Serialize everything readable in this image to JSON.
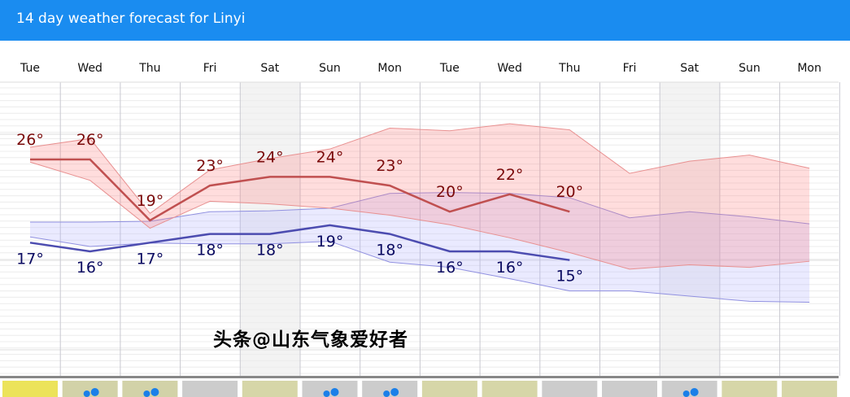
{
  "header": {
    "title": "14 day weather forecast for Linyi"
  },
  "days": [
    "Tue",
    "Wed",
    "Thu",
    "Fri",
    "Sat",
    "Sun",
    "Mon",
    "Tue",
    "Wed",
    "Thu",
    "Fri",
    "Sat",
    "Sun",
    "Mon"
  ],
  "colors": {
    "header": "#1a8cf0",
    "high": "#c05050",
    "low": "#4c4cb0",
    "high_label": "#7a0a0a",
    "low_label": "#0a0a60"
  },
  "high_labels": [
    "26°",
    "26°",
    "19°",
    "23°",
    "24°",
    "24°",
    "23°",
    "20°",
    "22°",
    "20°"
  ],
  "low_labels": [
    "17°",
    "16°",
    "17°",
    "18°",
    "18°",
    "19°",
    "18°",
    "16°",
    "16°",
    "15°"
  ],
  "high_values": [
    26,
    26,
    19,
    23,
    24,
    24,
    23,
    20,
    22,
    20
  ],
  "low_values": [
    17,
    16,
    17,
    18,
    18,
    19,
    18,
    16,
    16,
    15
  ],
  "high_band_upper": [
    27.4,
    28.4,
    19.8,
    24.8,
    26.1,
    27.2,
    29.6,
    29.3,
    30.1,
    29.4,
    24.4,
    25.8,
    26.5,
    25.0
  ],
  "high_band_lower": [
    25.7,
    23.6,
    18.1,
    21.2,
    20.9,
    20.4,
    19.6,
    18.5,
    17.0,
    15.3,
    13.4,
    13.9,
    13.6,
    14.3
  ],
  "low_band_upper": [
    18.8,
    18.8,
    18.9,
    20.0,
    20.1,
    20.4,
    22.1,
    22.2,
    22.1,
    21.6,
    19.3,
    20.0,
    19.4,
    18.6
  ],
  "low_band_lower": [
    17.1,
    16.0,
    16.4,
    16.3,
    16.3,
    16.6,
    14.2,
    13.6,
    12.3,
    10.9,
    10.9,
    10.3,
    9.7,
    9.6
  ],
  "conditions": [
    "sun",
    "rain",
    "rain",
    "cloud",
    "sun-cloud",
    "rain",
    "rain",
    "sun-cloud",
    "sun-cloud",
    "cloud",
    "cloud",
    "rain",
    "sun-cloud",
    "sun-cloud"
  ],
  "watermark": "头条@山东气象爱好者"
}
